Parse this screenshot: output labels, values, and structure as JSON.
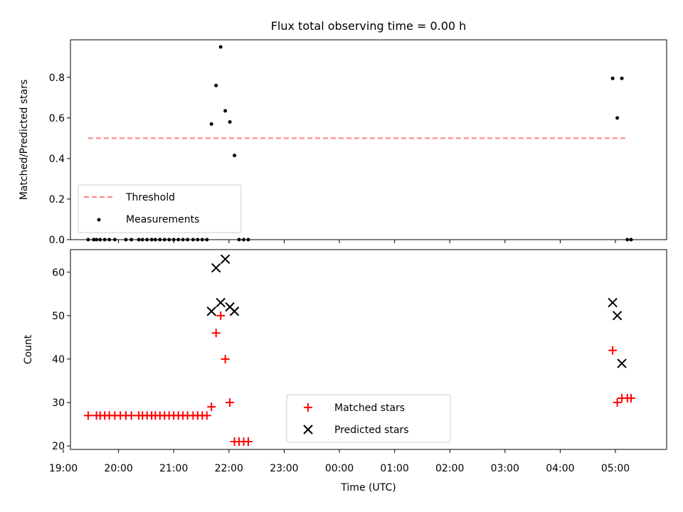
{
  "chart_data": [
    {
      "type": "scatter",
      "title": "Flux total observing time = 0.00 h",
      "ylabel": "Matched/Predicted stars",
      "xlabel": "",
      "ylim": [
        0,
        1
      ],
      "yticks": [
        "0.0",
        "0.2",
        "0.4",
        "0.6",
        "0.8"
      ],
      "legend_position": "lower-left",
      "threshold": {
        "name": "Threshold",
        "value": 0.5,
        "x_start": "19:27",
        "x_end": "05:13",
        "color": "#ff7f7f"
      },
      "series": [
        {
          "name": "Measurements",
          "color": "#000000",
          "points": [
            [
              "19:27",
              0
            ],
            [
              "19:33",
              0
            ],
            [
              "19:36",
              0
            ],
            [
              "19:40",
              0
            ],
            [
              "19:45",
              0
            ],
            [
              "19:50",
              0
            ],
            [
              "19:56",
              0
            ],
            [
              "20:08",
              0
            ],
            [
              "20:14",
              0
            ],
            [
              "20:22",
              0
            ],
            [
              "20:26",
              0
            ],
            [
              "20:31",
              0
            ],
            [
              "20:36",
              0
            ],
            [
              "20:40",
              0
            ],
            [
              "20:45",
              0
            ],
            [
              "20:50",
              0
            ],
            [
              "20:55",
              0
            ],
            [
              "21:00",
              0
            ],
            [
              "21:05",
              0
            ],
            [
              "21:10",
              0
            ],
            [
              "21:15",
              0
            ],
            [
              "21:21",
              0
            ],
            [
              "21:26",
              0
            ],
            [
              "21:31",
              0
            ],
            [
              "21:36",
              0
            ],
            [
              "21:41",
              0.57
            ],
            [
              "21:46",
              0.76
            ],
            [
              "21:51",
              0.95
            ],
            [
              "21:56",
              0.635
            ],
            [
              "22:01",
              0.58
            ],
            [
              "22:06",
              0.415
            ],
            [
              "22:11",
              0
            ],
            [
              "22:16",
              0
            ],
            [
              "22:21",
              0
            ],
            [
              "04:57",
              0.795
            ],
            [
              "05:02",
              0.6
            ],
            [
              "05:07",
              0.795
            ],
            [
              "05:13",
              0
            ],
            [
              "05:17",
              0
            ]
          ]
        }
      ]
    },
    {
      "type": "scatter",
      "title": "",
      "ylabel": "Count",
      "xlabel": "Time (UTC)",
      "ylim": [
        19,
        65
      ],
      "yticks": [
        "20",
        "30",
        "40",
        "50",
        "60"
      ],
      "xticks": [
        "19:00",
        "20:00",
        "21:00",
        "22:00",
        "23:00",
        "00:00",
        "01:00",
        "02:00",
        "03:00",
        "04:00",
        "05:00"
      ],
      "legend_position": "lower-center",
      "series": [
        {
          "name": "Matched stars",
          "marker": "+",
          "color": "#ff0000",
          "points": [
            [
              "19:27",
              27
            ],
            [
              "19:36",
              27
            ],
            [
              "19:40",
              27
            ],
            [
              "19:45",
              27
            ],
            [
              "19:50",
              27
            ],
            [
              "19:56",
              27
            ],
            [
              "20:02",
              27
            ],
            [
              "20:08",
              27
            ],
            [
              "20:14",
              27
            ],
            [
              "20:22",
              27
            ],
            [
              "20:26",
              27
            ],
            [
              "20:31",
              27
            ],
            [
              "20:36",
              27
            ],
            [
              "20:40",
              27
            ],
            [
              "20:45",
              27
            ],
            [
              "20:50",
              27
            ],
            [
              "20:55",
              27
            ],
            [
              "21:00",
              27
            ],
            [
              "21:05",
              27
            ],
            [
              "21:10",
              27
            ],
            [
              "21:15",
              27
            ],
            [
              "21:21",
              27
            ],
            [
              "21:26",
              27
            ],
            [
              "21:31",
              27
            ],
            [
              "21:36",
              27
            ],
            [
              "21:41",
              29
            ],
            [
              "21:46",
              46
            ],
            [
              "21:51",
              50
            ],
            [
              "21:56",
              40
            ],
            [
              "22:01",
              30
            ],
            [
              "22:06",
              21
            ],
            [
              "22:11",
              21
            ],
            [
              "22:16",
              21
            ],
            [
              "22:21",
              21
            ],
            [
              "04:57",
              42
            ],
            [
              "05:02",
              30
            ],
            [
              "05:07",
              31
            ],
            [
              "05:13",
              31
            ],
            [
              "05:17",
              31
            ]
          ]
        },
        {
          "name": "Predicted stars",
          "marker": "x",
          "color": "#000000",
          "points": [
            [
              "21:41",
              51
            ],
            [
              "21:46",
              61
            ],
            [
              "21:51",
              53
            ],
            [
              "21:56",
              63
            ],
            [
              "22:01",
              52
            ],
            [
              "22:06",
              51
            ],
            [
              "04:57",
              53
            ],
            [
              "05:02",
              50
            ],
            [
              "05:07",
              39
            ]
          ]
        }
      ]
    }
  ]
}
